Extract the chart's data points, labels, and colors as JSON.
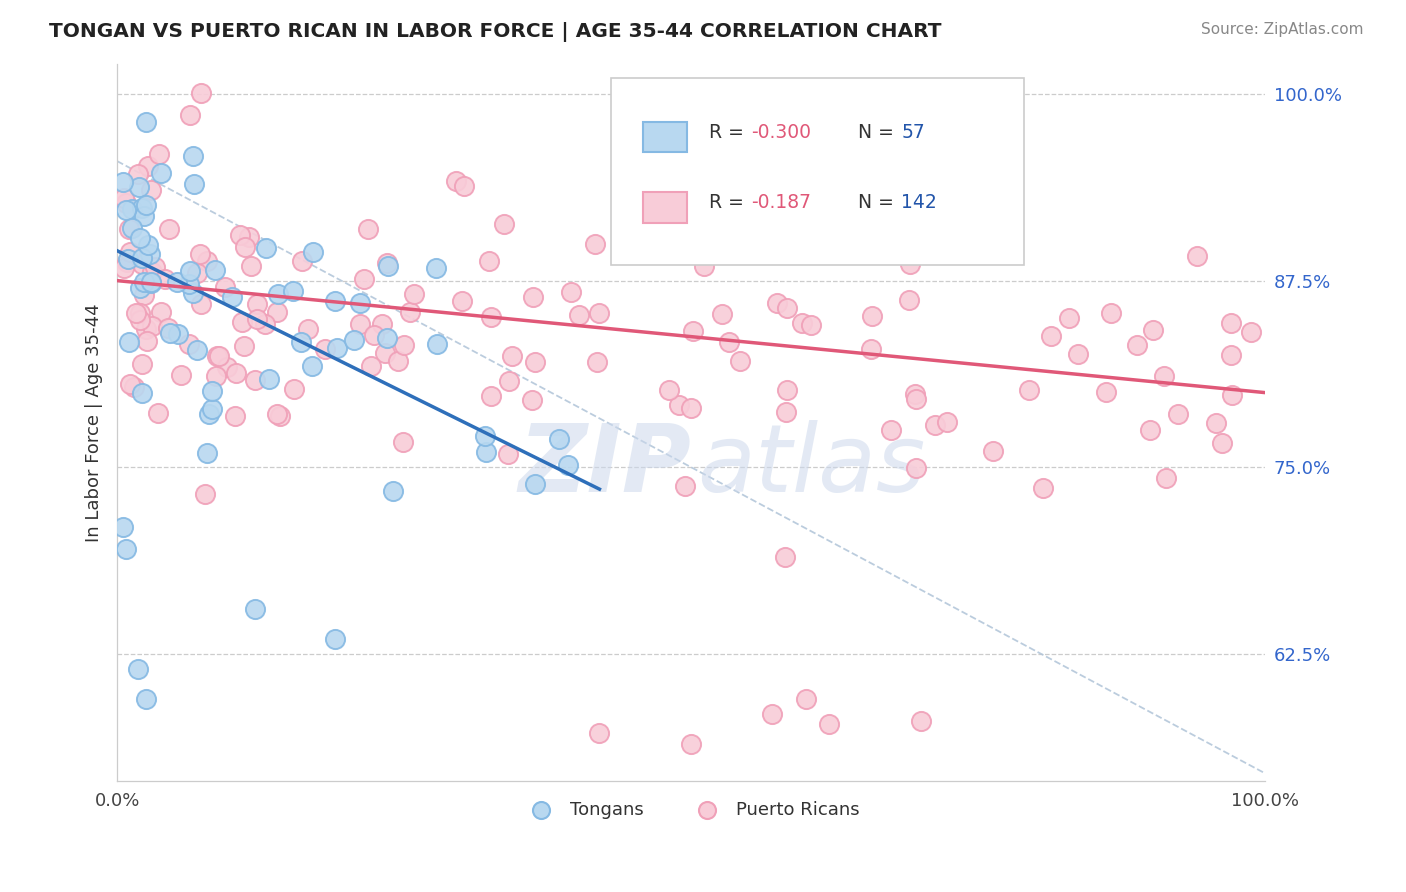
{
  "title": "TONGAN VS PUERTO RICAN IN LABOR FORCE | AGE 35-44 CORRELATION CHART",
  "source_text": "Source: ZipAtlas.com",
  "ylabel": "In Labor Force | Age 35-44",
  "xlim": [
    0.0,
    1.0
  ],
  "ylim": [
    0.54,
    1.02
  ],
  "right_yticks": [
    0.625,
    0.75,
    0.875,
    1.0
  ],
  "right_yticklabels": [
    "62.5%",
    "75.0%",
    "87.5%",
    "100.0%"
  ],
  "tongan_color": "#85b9e3",
  "tongan_face": "#b8d8f0",
  "puerto_rican_color": "#f0a0b8",
  "puerto_rican_face": "#f8ccd8",
  "tongan_trend_color": "#2e6fba",
  "puerto_rican_trend_color": "#e05878",
  "diag_color": "#b0c4d8",
  "watermark_zip": "ZIP",
  "watermark_atlas": "atlas",
  "watermark_color": "#c8d8ec",
  "legend_box_color": "#e8e8e8",
  "r_value_color": "#e05878",
  "n_value_color": "#2255aa",
  "seed": 12345
}
